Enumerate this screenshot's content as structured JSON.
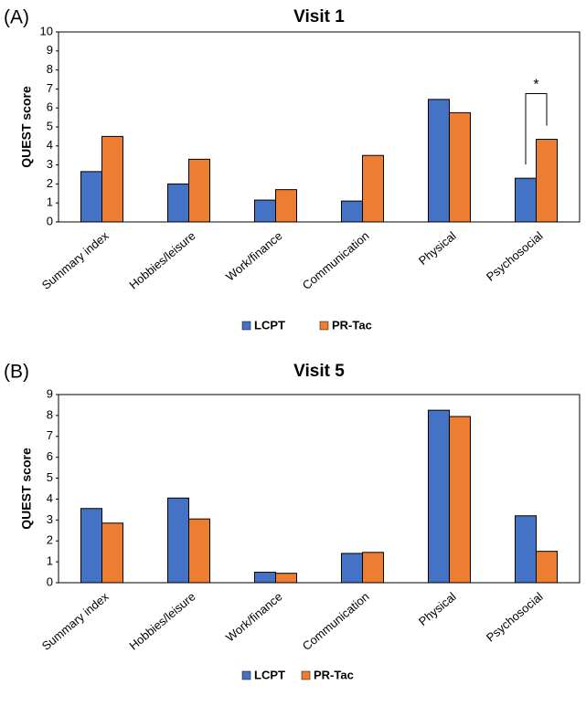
{
  "chart_data": [
    {
      "type": "bar",
      "panel": "(A)",
      "title": "Visit 1",
      "y_label": "QUEST score",
      "categories": [
        "Summary index",
        "Hobbies/leisure",
        "Work/finance",
        "Communication",
        "Physical",
        "Psychosocial"
      ],
      "series": [
        {
          "name": "LCPT",
          "color": "#4472c4",
          "values": [
            2.65,
            2.0,
            1.15,
            1.1,
            6.45,
            2.3
          ]
        },
        {
          "name": "PR-Tac",
          "color": "#ed7d31",
          "values": [
            4.5,
            3.3,
            1.7,
            3.5,
            5.75,
            4.35
          ]
        }
      ],
      "ylim": [
        0,
        10
      ],
      "yticks": [
        0,
        1,
        2,
        3,
        4,
        5,
        6,
        7,
        8,
        9,
        10
      ],
      "grid": false,
      "annotation": "*"
    },
    {
      "type": "bar",
      "panel": "(B)",
      "title": "Visit 5",
      "y_label": "QUEST score",
      "categories": [
        "Summary index",
        "Hobbies/leisure",
        "Work/finance",
        "Communication",
        "Physical",
        "Psychosocial"
      ],
      "series": [
        {
          "name": "LCPT",
          "color": "#4472c4",
          "values": [
            3.55,
            4.05,
            0.5,
            1.4,
            8.25,
            3.2
          ]
        },
        {
          "name": "PR-Tac",
          "color": "#ed7d31",
          "values": [
            2.85,
            3.05,
            0.45,
            1.45,
            7.95,
            1.5
          ]
        }
      ],
      "ylim": [
        0,
        9
      ],
      "yticks": [
        0,
        1,
        2,
        3,
        4,
        5,
        6,
        7,
        8,
        9
      ],
      "grid": false
    }
  ]
}
